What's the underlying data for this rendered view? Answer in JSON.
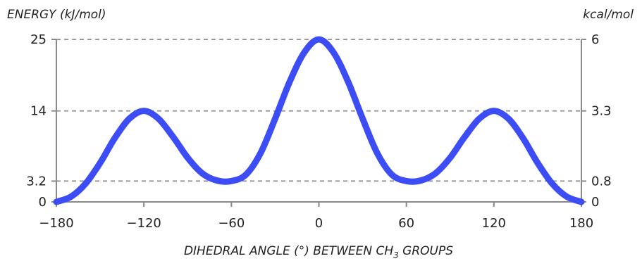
{
  "chart_data": {
    "type": "line",
    "y_title": "ENERGY (kJ/mol)",
    "y2_title": "kcal/mol",
    "x_title_main": "DIHEDRAL ANGLE (°) BETWEEN CH",
    "x_title_sub": "3",
    "x_title_end": " GROUPS",
    "x_ticks": [
      {
        "value": -180,
        "label": "−180"
      },
      {
        "value": -120,
        "label": "−120"
      },
      {
        "value": -60,
        "label": "−60"
      },
      {
        "value": 0,
        "label": "0"
      },
      {
        "value": 60,
        "label": "60"
      },
      {
        "value": 120,
        "label": "120"
      },
      {
        "value": 180,
        "label": "180"
      }
    ],
    "y_ticks": [
      {
        "value": 0,
        "label": "0"
      },
      {
        "value": 3.2,
        "label": "3.2"
      },
      {
        "value": 14,
        "label": "14"
      },
      {
        "value": 25,
        "label": "25"
      }
    ],
    "y2_ticks": [
      {
        "value": 0,
        "label": "0"
      },
      {
        "value": 3.2,
        "label": "0.8"
      },
      {
        "value": 14,
        "label": "3.3"
      },
      {
        "value": 25,
        "label": "6"
      }
    ],
    "gridlines_y": [
      3.2,
      14,
      25
    ],
    "xlim": [
      -180,
      180
    ],
    "ylim": [
      0,
      25
    ],
    "series": [
      {
        "color": "#3d4df5",
        "points": [
          [
            -180,
            0
          ],
          [
            -170,
            0.8
          ],
          [
            -160,
            2.8
          ],
          [
            -150,
            6.0
          ],
          [
            -140,
            9.8
          ],
          [
            -130,
            12.8
          ],
          [
            -120,
            14.0
          ],
          [
            -110,
            12.8
          ],
          [
            -100,
            10.0
          ],
          [
            -90,
            6.8
          ],
          [
            -80,
            4.4
          ],
          [
            -70,
            3.3
          ],
          [
            -60,
            3.2
          ],
          [
            -50,
            4.2
          ],
          [
            -40,
            7.5
          ],
          [
            -30,
            12.8
          ],
          [
            -20,
            18.5
          ],
          [
            -10,
            23.0
          ],
          [
            0,
            25.0
          ],
          [
            10,
            23.0
          ],
          [
            20,
            18.5
          ],
          [
            30,
            12.8
          ],
          [
            40,
            7.5
          ],
          [
            50,
            4.2
          ],
          [
            60,
            3.2
          ],
          [
            70,
            3.3
          ],
          [
            80,
            4.4
          ],
          [
            90,
            6.8
          ],
          [
            100,
            10.0
          ],
          [
            110,
            12.8
          ],
          [
            120,
            14.0
          ],
          [
            130,
            12.8
          ],
          [
            140,
            9.8
          ],
          [
            150,
            6.0
          ],
          [
            160,
            2.8
          ],
          [
            170,
            0.8
          ],
          [
            180,
            0
          ]
        ]
      }
    ],
    "grid": true,
    "legend": "none"
  }
}
